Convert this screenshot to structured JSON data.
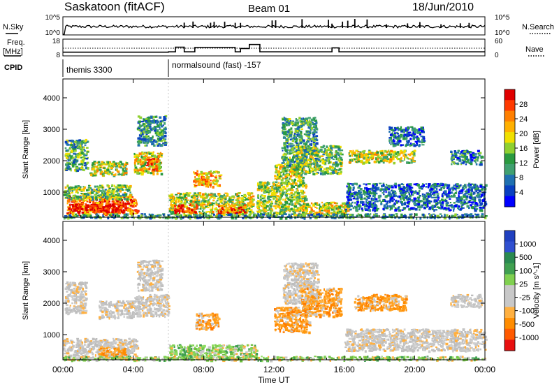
{
  "header": {
    "site": "Saskatoon (fitACF)",
    "beam": "Beam 01",
    "date": "18/Jun/2010"
  },
  "nsky_panel": {
    "left_label": "N.Sky",
    "right_label": "N.Search",
    "left_ticks": [
      "10^5",
      "10^0"
    ],
    "right_ticks": [
      "10^5",
      "10^0"
    ]
  },
  "freq_panel": {
    "left_label_top": "Freq.",
    "left_label_bottom": "[MHz]",
    "right_label": "Nave",
    "left_ticks": [
      "18",
      "8"
    ],
    "right_ticks": [
      "60",
      "0"
    ]
  },
  "cpid": {
    "label": "CPID",
    "segments": [
      {
        "name": "themis 3300",
        "start_hour": 0
      },
      {
        "name": "normalsound (fast) -157",
        "start_hour": 6
      }
    ]
  },
  "time_axis": {
    "label": "Time UT",
    "ticks": [
      "00:00",
      "04:00",
      "08:00",
      "12:00",
      "16:00",
      "20:00",
      "00:00"
    ]
  },
  "chart_data": [
    {
      "type": "heatmap",
      "name": "power",
      "ylabel": "Slant Range [km]",
      "yticks": [
        1000,
        2000,
        3000,
        4000
      ],
      "ylim": [
        200,
        4600
      ],
      "xlim_hours": [
        0,
        24
      ],
      "colorbar_label": "Power [dB]",
      "colorbar_ticks": [
        "28",
        "24",
        "20",
        "16",
        "12",
        "8",
        "4"
      ],
      "colorbar_colors": [
        "#e00000",
        "#ff3a00",
        "#ff7f00",
        "#ffb000",
        "#f0e000",
        "#8fd030",
        "#2a9a40",
        "#40a070",
        "#2070b0",
        "#0a40c0",
        "#0000ff"
      ],
      "regions": [
        {
          "t": [
            0.2,
            4.2
          ],
          "r": [
            300,
            900
          ],
          "level": 0.8
        },
        {
          "t": [
            0.5,
            3.5
          ],
          "r": [
            380,
            650
          ],
          "level": 1.0
        },
        {
          "t": [
            0.0,
            3.8
          ],
          "r": [
            800,
            1250
          ],
          "level": 0.45
        },
        {
          "t": [
            0.1,
            1.4
          ],
          "r": [
            1700,
            2700
          ],
          "level": 0.35
        },
        {
          "t": [
            1.5,
            3.6
          ],
          "r": [
            1550,
            2000
          ],
          "level": 0.55
        },
        {
          "t": [
            4.0,
            5.6
          ],
          "r": [
            1600,
            2300
          ],
          "level": 0.6
        },
        {
          "t": [
            4.2,
            5.8
          ],
          "r": [
            2500,
            3450
          ],
          "level": 0.3
        },
        {
          "t": [
            4.7,
            5.3
          ],
          "r": [
            1700,
            2100
          ],
          "level": 0.9
        },
        {
          "t": [
            6.0,
            10.8
          ],
          "r": [
            300,
            1000
          ],
          "level": 0.55
        },
        {
          "t": [
            6.3,
            7.6
          ],
          "r": [
            350,
            620
          ],
          "level": 0.95
        },
        {
          "t": [
            7.4,
            8.9
          ],
          "r": [
            1200,
            1700
          ],
          "level": 0.7
        },
        {
          "t": [
            8.8,
            10.3
          ],
          "r": [
            350,
            620
          ],
          "level": 0.85
        },
        {
          "t": [
            11.0,
            13.8
          ],
          "r": [
            300,
            1350
          ],
          "level": 0.5
        },
        {
          "t": [
            12.0,
            13.6
          ],
          "r": [
            1300,
            1900
          ],
          "level": 0.55
        },
        {
          "t": [
            12.4,
            14.4
          ],
          "r": [
            1850,
            3400
          ],
          "level": 0.35
        },
        {
          "t": [
            13.6,
            16.2
          ],
          "r": [
            300,
            700
          ],
          "level": 0.6
        },
        {
          "t": [
            13.2,
            15.8
          ],
          "r": [
            1600,
            2500
          ],
          "level": 0.45
        },
        {
          "t": [
            16.2,
            20.0
          ],
          "r": [
            1950,
            2350
          ],
          "level": 0.55
        },
        {
          "t": [
            16.0,
            24.0
          ],
          "r": [
            450,
            1300
          ],
          "level": 0.2
        },
        {
          "t": [
            18.5,
            20.5
          ],
          "r": [
            2500,
            3100
          ],
          "level": 0.2
        },
        {
          "t": [
            22.0,
            23.8
          ],
          "r": [
            1900,
            2350
          ],
          "level": 0.25
        },
        {
          "t": [
            0.0,
            24.0
          ],
          "r": [
            200,
            330
          ],
          "level": 0.3
        }
      ]
    },
    {
      "type": "heatmap",
      "name": "velocity",
      "ylabel": "Slant Range [km]",
      "yticks": [
        1000,
        2000,
        3000,
        4000
      ],
      "ylim": [
        200,
        4600
      ],
      "xlim_hours": [
        0,
        24
      ],
      "colorbar_label": "Velocity [m s^-1]",
      "colorbar_ticks": [
        "1000",
        "500",
        "100",
        "25",
        "-25",
        "-100",
        "-500",
        "-1000"
      ],
      "colorbar_colors": [
        "#2040c0",
        "#3050d0",
        "#2a8a50",
        "#40a050",
        "#80d050",
        "#c8c8c8",
        "#c8c8c8",
        "#ffb040",
        "#ff8c00",
        "#ff5a00",
        "#e81010"
      ],
      "regions": [
        {
          "t": [
            0.0,
            4.2
          ],
          "r": [
            250,
            900
          ],
          "vel": "grey"
        },
        {
          "t": [
            2.0,
            3.5
          ],
          "r": [
            300,
            600
          ],
          "vel": "orange"
        },
        {
          "t": [
            0.1,
            1.3
          ],
          "r": [
            1700,
            2700
          ],
          "vel": "grey"
        },
        {
          "t": [
            2.0,
            4.0
          ],
          "r": [
            1550,
            2100
          ],
          "vel": "grey"
        },
        {
          "t": [
            4.2,
            5.6
          ],
          "r": [
            2400,
            3400
          ],
          "vel": "grey"
        },
        {
          "t": [
            4.0,
            6.0
          ],
          "r": [
            1600,
            2300
          ],
          "vel": "grey"
        },
        {
          "t": [
            6.0,
            11.0
          ],
          "r": [
            250,
            700
          ],
          "vel": "green"
        },
        {
          "t": [
            7.5,
            8.8
          ],
          "r": [
            1200,
            1700
          ],
          "vel": "orange"
        },
        {
          "t": [
            12.0,
            14.0
          ],
          "r": [
            1100,
            1900
          ],
          "vel": "orange"
        },
        {
          "t": [
            12.5,
            14.5
          ],
          "r": [
            2000,
            3300
          ],
          "vel": "grey"
        },
        {
          "t": [
            13.5,
            15.8
          ],
          "r": [
            1600,
            2500
          ],
          "vel": "orange"
        },
        {
          "t": [
            16.5,
            19.5
          ],
          "r": [
            1800,
            2300
          ],
          "vel": "orange"
        },
        {
          "t": [
            16.0,
            24.0
          ],
          "r": [
            500,
            1200
          ],
          "vel": "grey"
        },
        {
          "t": [
            22.0,
            23.8
          ],
          "r": [
            1900,
            2300
          ],
          "vel": "grey"
        },
        {
          "t": [
            0.0,
            24.0
          ],
          "r": [
            200,
            330
          ],
          "vel": "green"
        }
      ]
    }
  ]
}
